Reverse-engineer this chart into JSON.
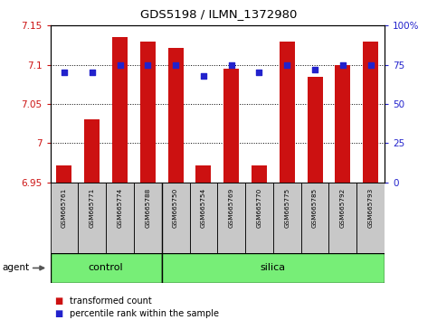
{
  "title": "GDS5198 / ILMN_1372980",
  "samples": [
    "GSM665761",
    "GSM665771",
    "GSM665774",
    "GSM665788",
    "GSM665750",
    "GSM665754",
    "GSM665769",
    "GSM665770",
    "GSM665775",
    "GSM665785",
    "GSM665792",
    "GSM665793"
  ],
  "bar_values": [
    6.972,
    7.03,
    7.135,
    7.13,
    7.122,
    6.972,
    7.095,
    6.972,
    7.13,
    7.085,
    7.1,
    7.13
  ],
  "percentile_values": [
    70,
    70,
    75,
    75,
    75,
    68,
    75,
    70,
    75,
    72,
    75,
    75
  ],
  "bar_bottom": 6.95,
  "ylim_min": 6.95,
  "ylim_max": 7.15,
  "yticks": [
    6.95,
    7.0,
    7.05,
    7.1,
    7.15
  ],
  "ytick_labels": [
    "6.95",
    "7",
    "7.05",
    "7.1",
    "7.15"
  ],
  "right_yticks": [
    0,
    25,
    50,
    75,
    100
  ],
  "right_ytick_labels": [
    "0",
    "25",
    "50",
    "75",
    "100%"
  ],
  "bar_color": "#cc1111",
  "dot_color": "#2222cc",
  "n_control": 4,
  "n_silica": 8,
  "control_label": "control",
  "silica_label": "silica",
  "agent_label": "agent",
  "legend_bar_label": "transformed count",
  "legend_dot_label": "percentile rank within the sample",
  "group_box_color": "#77ee77",
  "tick_area_color": "#c8c8c8",
  "ylabel_color": "#cc1111",
  "right_ylabel_color": "#2222cc",
  "background_color": "#ffffff"
}
